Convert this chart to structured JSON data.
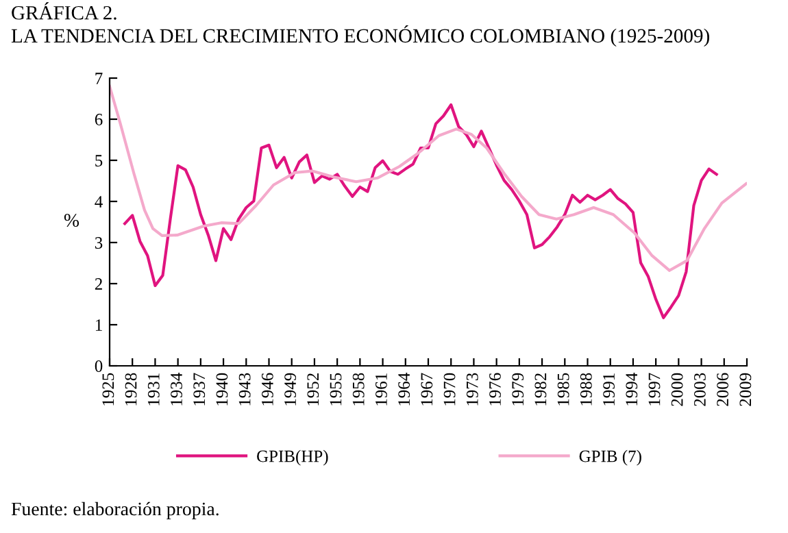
{
  "chart_data": {
    "type": "line",
    "title": "GRÁFICA 2.\nLA TENDENCIA DEL CRECIMIENTO ECONÓMICO COLOMBIANO (1925-2009)",
    "ylabel": "%",
    "xlim": [
      1925,
      2009
    ],
    "xticks": [
      1925,
      1928,
      1931,
      1934,
      1937,
      1940,
      1943,
      1946,
      1949,
      1952,
      1955,
      1958,
      1961,
      1964,
      1967,
      1970,
      1973,
      1976,
      1979,
      1982,
      1985,
      1988,
      1991,
      1994,
      1997,
      2000,
      2003,
      2006,
      2009
    ],
    "ylim": [
      0,
      7
    ],
    "yticks": [
      0,
      1,
      2,
      3,
      4,
      5,
      6,
      7
    ],
    "grid": false,
    "legend": "bottom",
    "line_style": "solid",
    "marker": "none",
    "annotations": [
      "Fuente: elaboración propia."
    ],
    "series": [
      {
        "name": "GPIB(HP)",
        "color": "#e0147f",
        "x": [
          1927,
          1928,
          1929,
          1930,
          1931,
          1932,
          1933,
          1934,
          1935,
          1936,
          1937,
          1938,
          1939,
          1940,
          1941,
          1942,
          1943,
          1944,
          1945,
          1946,
          1947,
          1948,
          1949,
          1950,
          1951,
          1952,
          1953,
          1954,
          1955,
          1956,
          1957,
          1958,
          1959,
          1960,
          1961,
          1962,
          1963,
          1964,
          1965,
          1966,
          1967,
          1968,
          1969,
          1970,
          1971,
          1972,
          1973,
          1974,
          1975,
          1976,
          1977,
          1978,
          1979,
          1980,
          1981,
          1982,
          1983,
          1984,
          1985,
          1986,
          1987,
          1988,
          1989,
          1990,
          1991,
          1992,
          1993,
          1994,
          1995,
          1996,
          1997,
          1998,
          1999,
          2000,
          2001,
          2002,
          2003,
          2004,
          2005
        ],
        "values": [
          3.46,
          3.66,
          3.03,
          2.68,
          1.95,
          2.2,
          3.57,
          4.87,
          4.77,
          4.35,
          3.68,
          3.18,
          2.56,
          3.34,
          3.07,
          3.57,
          3.85,
          4.01,
          5.3,
          5.37,
          4.82,
          5.07,
          4.57,
          4.96,
          5.13,
          4.46,
          4.62,
          4.54,
          4.66,
          4.37,
          4.12,
          4.35,
          4.24,
          4.82,
          4.99,
          4.73,
          4.66,
          4.79,
          4.91,
          5.3,
          5.3,
          5.89,
          6.08,
          6.35,
          5.82,
          5.63,
          5.33,
          5.71,
          5.3,
          4.88,
          4.51,
          4.29,
          4.01,
          3.68,
          2.87,
          2.95,
          3.14,
          3.38,
          3.68,
          4.15,
          3.98,
          4.15,
          4.04,
          4.15,
          4.29,
          4.07,
          3.94,
          3.73,
          2.51,
          2.17,
          1.62,
          1.17,
          1.43,
          1.71,
          2.29,
          3.9,
          4.51,
          4.79,
          4.66
        ]
      },
      {
        "name": "GPIB (7)",
        "color": "#f4a9cb",
        "x": [
          1925,
          1926.4,
          1928.2,
          1929.6,
          1930.7,
          1931.9,
          1933.9,
          1937.4,
          1939.7,
          1942,
          1944.3,
          1946.6,
          1949.4,
          1951.7,
          1954.6,
          1957.5,
          1960.3,
          1963.2,
          1965.5,
          1966.1,
          1968.4,
          1970.7,
          1972.7,
          1974.7,
          1977,
          1979.3,
          1981.6,
          1983.9,
          1986.2,
          1988.8,
          1991.4,
          1994.2,
          1996.5,
          1998.8,
          2001.1,
          2003.4,
          2005.7,
          2008.9
        ],
        "values": [
          6.8,
          5.9,
          4.68,
          3.79,
          3.34,
          3.17,
          3.18,
          3.4,
          3.48,
          3.46,
          3.9,
          4.4,
          4.7,
          4.74,
          4.59,
          4.48,
          4.57,
          4.85,
          5.15,
          5.24,
          5.6,
          5.76,
          5.63,
          5.3,
          4.68,
          4.12,
          3.68,
          3.57,
          3.68,
          3.85,
          3.68,
          3.23,
          2.68,
          2.32,
          2.56,
          3.34,
          3.96,
          4.43
        ]
      }
    ]
  }
}
